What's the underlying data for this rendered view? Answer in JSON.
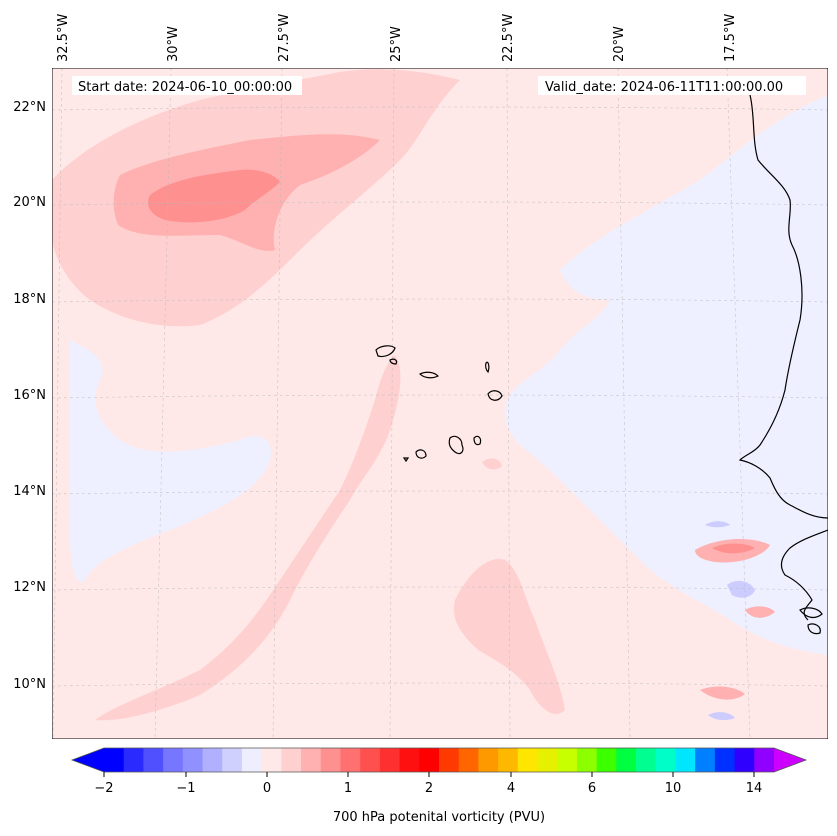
{
  "map": {
    "start_date": "Start date: 2024-06-10_00:00:00",
    "valid_date": "Valid_date: 2024-06-11T11:00:00.00",
    "lon_labels": [
      "32.5°W",
      "30°W",
      "27.5°W",
      "25°W",
      "22.5°W",
      "20°W",
      "17.5°W"
    ],
    "lat_labels": [
      "22°N",
      "20°N",
      "18°N",
      "16°N",
      "14°N",
      "12°N",
      "10°N"
    ],
    "colors": {
      "background_field": "#ffe8e8",
      "light_pink": "#ffd0d0",
      "mid_pink": "#ffb0b0",
      "dark_pink": "#ff9090",
      "light_blue": "#eef0ff",
      "mid_blue": "#ccccff",
      "coast": "#000000"
    }
  },
  "colorbar": {
    "label": "700 hPa potenital vorticity (PVU)",
    "tick_labels": [
      "−2",
      "−1",
      "0",
      "1",
      "2",
      "4",
      "6",
      "10",
      "14"
    ],
    "colors": [
      "#0000ff",
      "#2a2aff",
      "#5050ff",
      "#7676ff",
      "#9090ff",
      "#b0b0ff",
      "#d0d0ff",
      "#eeeeff",
      "#ffe8e8",
      "#ffd0d0",
      "#ffb0b0",
      "#ff9090",
      "#ff7070",
      "#ff5050",
      "#ff3030",
      "#ff1010",
      "#ff0000",
      "#ff3a00",
      "#ff6600",
      "#ff9900",
      "#ffb800",
      "#ffe600",
      "#e6f000",
      "#c8ff00",
      "#8cff00",
      "#3cff00",
      "#00ff40",
      "#00ff90",
      "#00ffc8",
      "#00e6ff",
      "#0080ff",
      "#0030ff",
      "#3000ff",
      "#9000ff"
    ],
    "extend_min_color": "#0000ff",
    "extend_max_color": "#cc00ff"
  }
}
